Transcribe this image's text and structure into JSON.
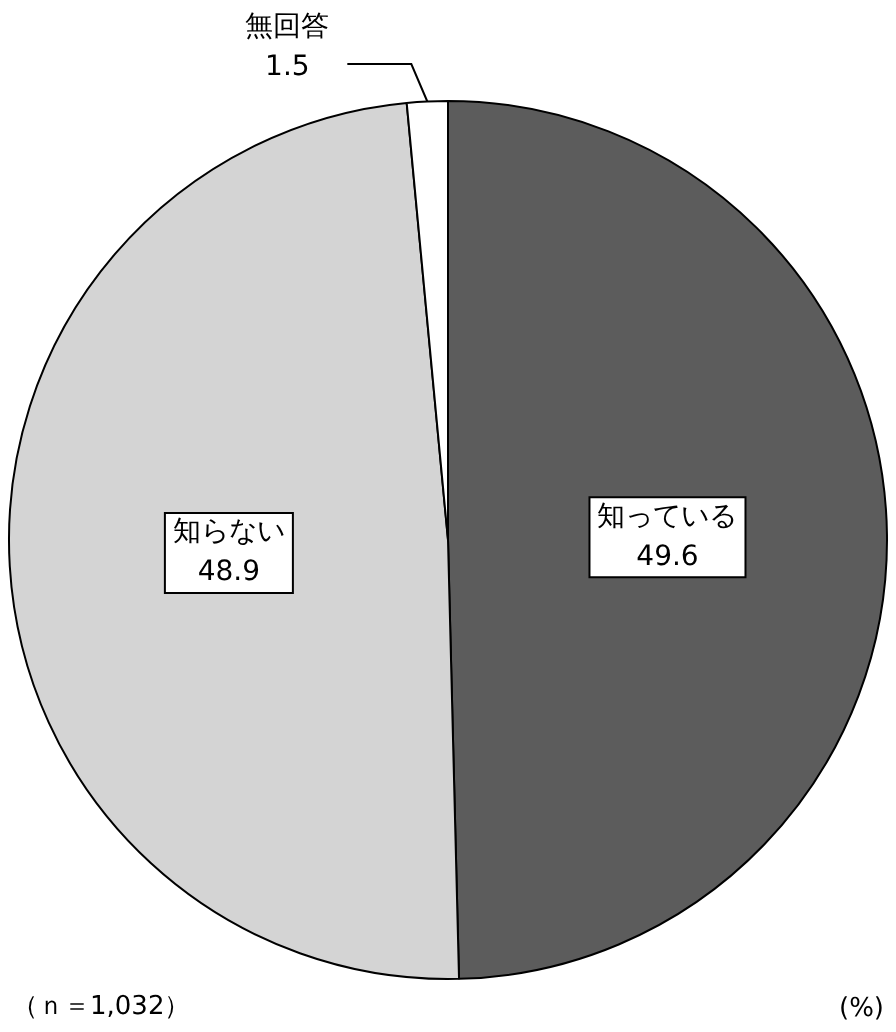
{
  "chart_data": {
    "type": "pie",
    "categories": [
      "知っている",
      "知らない",
      "無回答"
    ],
    "values": [
      49.6,
      48.9,
      1.5
    ],
    "colors": [
      "#5c5c5c",
      "#d4d4d4",
      "#ffffff"
    ],
    "data_labels": true,
    "legend": false,
    "annotations": [
      "（ｎ＝1,032）",
      "(%)"
    ]
  }
}
